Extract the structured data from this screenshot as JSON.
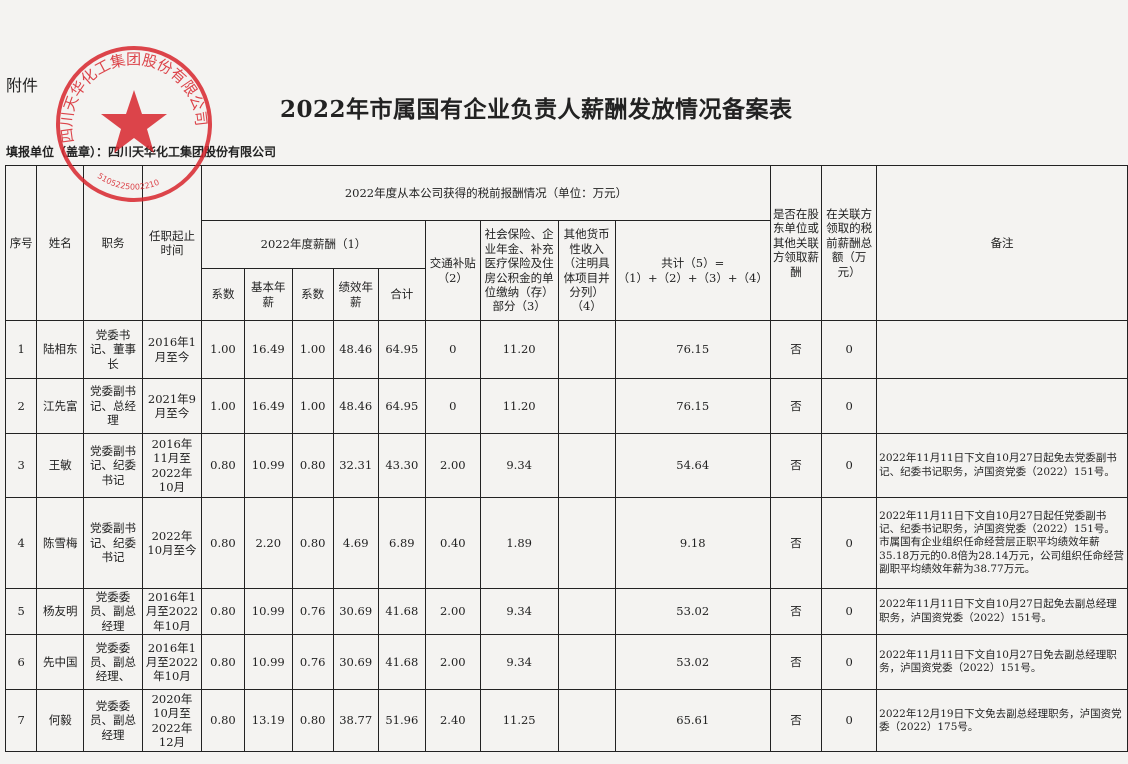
{
  "attachment_label": "附件",
  "title": "2022年市属国有企业负责人薪酬发放情况备案表",
  "unit_label": "填报单位（盖章）：四川天华化工集团股份有限公司",
  "stamp": {
    "text": "四川天华化工集团股份有限公司",
    "code": "5105225002210",
    "color": "#d8262e"
  },
  "headers": {
    "seq": "序号",
    "name": "姓名",
    "position": "职务",
    "tenure": "任职起止时间",
    "income_group": "2022年度从本公司获得的税前报酬情况（单位：万元）",
    "salary_group": "2022年度薪酬（1）",
    "coef1": "系数",
    "base": "基本年薪",
    "coef2": "系数",
    "perf": "绩效年薪",
    "subtotal": "合计",
    "transport": "交通补贴（2）",
    "insurance": "社会保险、企业年金、补充医疗保险及住房公积金的单位缴纳（存）部分（3）",
    "other": "其他货币性收入（注明具体项目并分列）（4）",
    "total": "共计（5）=（1）+（2）+（3）+（4）",
    "shareholder": "是否在股东单位或其他关联方领取薪酬",
    "related": "在关联方领取的税前薪酬总额（万元）",
    "remark": "备注"
  },
  "rows": [
    {
      "seq": "1",
      "name": "陆相东",
      "position": "党委书记、董事长",
      "tenure": "2016年1月至今",
      "coef1": "1.00",
      "base": "16.49",
      "coef2": "1.00",
      "perf": "48.46",
      "subtotal": "64.95",
      "transport": "0",
      "insurance": "11.20",
      "other": "",
      "total": "76.15",
      "shareholder": "否",
      "related": "0",
      "remark": ""
    },
    {
      "seq": "2",
      "name": "江先富",
      "position": "党委副书记、总经理",
      "tenure": "2021年9月至今",
      "coef1": "1.00",
      "base": "16.49",
      "coef2": "1.00",
      "perf": "48.46",
      "subtotal": "64.95",
      "transport": "0",
      "insurance": "11.20",
      "other": "",
      "total": "76.15",
      "shareholder": "否",
      "related": "0",
      "remark": ""
    },
    {
      "seq": "3",
      "name": "王敏",
      "position": "党委副书记、纪委书记",
      "tenure": "2016年11月至2022年10月",
      "coef1": "0.80",
      "base": "10.99",
      "coef2": "0.80",
      "perf": "32.31",
      "subtotal": "43.30",
      "transport": "2.00",
      "insurance": "9.34",
      "other": "",
      "total": "54.64",
      "shareholder": "否",
      "related": "0",
      "remark": "2022年11月11日下文自10月27日起免去党委副书记、纪委书记职务，泸国资党委（2022）151号。"
    },
    {
      "seq": "4",
      "name": "陈雪梅",
      "position": "党委副书记、纪委书记",
      "tenure": "2022年10月至今",
      "coef1": "0.80",
      "base": "2.20",
      "coef2": "0.80",
      "perf": "4.69",
      "subtotal": "6.89",
      "transport": "0.40",
      "insurance": "1.89",
      "other": "",
      "total": "9.18",
      "shareholder": "否",
      "related": "0",
      "remark": "2022年11月11日下文自10月27日起任党委副书记、纪委书记职务，泸国资党委（2022）151号。市属国有企业组织任命经营层正职平均绩效年薪35.18万元的0.8倍为28.14万元，公司组织任命经营副职平均绩效年薪为38.77万元。"
    },
    {
      "seq": "5",
      "name": "杨友明",
      "position": "党委委员、副总经理",
      "tenure": "2016年1月至2022年10月",
      "coef1": "0.80",
      "base": "10.99",
      "coef2": "0.76",
      "perf": "30.69",
      "subtotal": "41.68",
      "transport": "2.00",
      "insurance": "9.34",
      "other": "",
      "total": "53.02",
      "shareholder": "否",
      "related": "0",
      "remark": "2022年11月11日下文自10月27日起免去副总经理职务，泸国资党委（2022）151号。"
    },
    {
      "seq": "6",
      "name": "先中国",
      "position": "党委委员、副总经理、",
      "tenure": "2016年1月至2022年10月",
      "coef1": "0.80",
      "base": "10.99",
      "coef2": "0.76",
      "perf": "30.69",
      "subtotal": "41.68",
      "transport": "2.00",
      "insurance": "9.34",
      "other": "",
      "total": "53.02",
      "shareholder": "否",
      "related": "0",
      "remark": "2022年11月11日下文自10月27日免去副总经理职务，泸国资党委（2022）151号。"
    },
    {
      "seq": "7",
      "name": "何毅",
      "position": "党委委员、副总经理",
      "tenure": "2020年10月至2022年12月",
      "coef1": "0.80",
      "base": "13.19",
      "coef2": "0.80",
      "perf": "38.77",
      "subtotal": "51.96",
      "transport": "2.40",
      "insurance": "11.25",
      "other": "",
      "total": "65.61",
      "shareholder": "否",
      "related": "0",
      "remark": "2022年12月19日下文免去副总经理职务，泸国资党委（2022）175号。"
    }
  ]
}
